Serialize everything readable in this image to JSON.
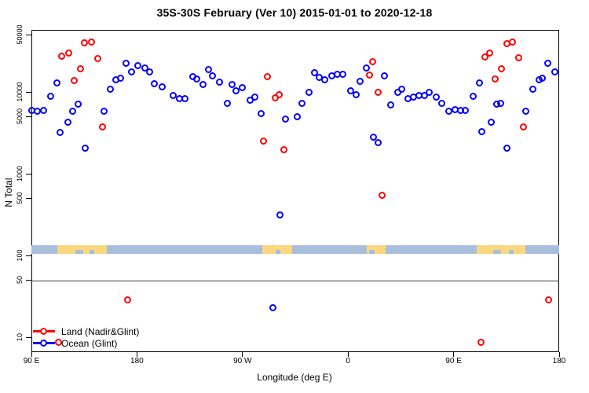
{
  "title": "35S-30S February (Ver 10)   2015-01-01 to 2020-12-18",
  "axis": {
    "x_label": "Longitude (deg E)",
    "y_label": "N Total",
    "x_ticks": [
      {
        "pos": 90,
        "label": "90 E"
      },
      {
        "pos": 180,
        "label": "180"
      },
      {
        "pos": 270,
        "label": "90 W"
      },
      {
        "pos": 360,
        "label": "0"
      },
      {
        "pos": 450,
        "label": "90 E"
      },
      {
        "pos": 540,
        "label": "180"
      }
    ],
    "y_ticks": [
      {
        "value": 50000,
        "label": "50000"
      },
      {
        "value": 10000,
        "label": "10000"
      },
      {
        "value": 5000,
        "label": "5000"
      },
      {
        "value": 1000,
        "label": "1000"
      },
      {
        "value": 500,
        "label": "500"
      },
      {
        "value": 100,
        "label": "100"
      },
      {
        "value": 50,
        "label": "50"
      },
      {
        "value": 10,
        "label": "10"
      }
    ],
    "y_scale": "log",
    "reference_line_value": 50
  },
  "legend": {
    "items": [
      {
        "label": "Land (Nadir&Glint)",
        "color": "#ff0000"
      },
      {
        "label": "Ocean (Glint)",
        "color": "#0000ff"
      }
    ]
  },
  "map_band": {
    "ocean_color": "#a9bedd",
    "land_color": "#fbd87f",
    "land_patches_deg": [
      [
        112,
        154
      ],
      [
        287,
        312
      ],
      [
        376,
        392
      ],
      [
        470,
        511
      ]
    ],
    "ocean_notches_deg": [
      [
        127.5,
        134
      ],
      [
        139.5,
        143.5
      ],
      [
        298,
        302.5
      ],
      [
        378,
        382.5
      ],
      [
        484,
        490.5
      ],
      [
        497,
        501
      ]
    ]
  },
  "chart_data": {
    "type": "scatter",
    "title": "35S-30S February (Ver 10)   2015-01-01 to 2020-12-18",
    "xlabel": "Longitude (deg E)",
    "ylabel": "N Total",
    "x_axis_note": "axis runs 90E eastward to 180 (wrap), values given as degrees 90-540",
    "xlim": [
      90,
      540
    ],
    "ylim_log": [
      8,
      60000
    ],
    "series": [
      {
        "name": "Land (Nadir&Glint)",
        "color": "#ff0000",
        "points": [
          [
            116.1,
            27100
          ],
          [
            122.1,
            29600
          ],
          [
            135.5,
            39400
          ],
          [
            141.6,
            40400
          ],
          [
            146.9,
            25400
          ],
          [
            132.2,
            19000
          ],
          [
            126.8,
            13600
          ],
          [
            150.9,
            3690
          ],
          [
            172.4,
            28
          ],
          [
            291.6,
            15200
          ],
          [
            298.3,
            8380
          ],
          [
            301.6,
            9160
          ],
          [
            288.2,
            2480
          ],
          [
            305.6,
            1940
          ],
          [
            381.3,
            23200
          ],
          [
            378.6,
            15900
          ],
          [
            386.0,
            9780
          ],
          [
            389.3,
            538
          ],
          [
            113.4,
            8.6
          ],
          [
            473.7,
            8.6
          ],
          [
            477.0,
            26500
          ],
          [
            481.1,
            29600
          ],
          [
            495.8,
            38600
          ],
          [
            500.5,
            40400
          ],
          [
            505.8,
            25900
          ],
          [
            491.1,
            19000
          ],
          [
            485.8,
            14300
          ],
          [
            509.9,
            3690
          ],
          [
            531.3,
            28
          ]
        ]
      },
      {
        "name": "Ocean (Glint)",
        "color": "#0000ff",
        "points": [
          [
            90.7,
            5880
          ],
          [
            95.4,
            5750
          ],
          [
            100.7,
            5880
          ],
          [
            106.7,
            8750
          ],
          [
            112.1,
            12800
          ],
          [
            130.2,
            7020
          ],
          [
            125.5,
            5750
          ],
          [
            121.5,
            4220
          ],
          [
            114.8,
            3160
          ],
          [
            136.2,
            2030
          ],
          [
            157.6,
            10700
          ],
          [
            152.3,
            5750
          ],
          [
            162.3,
            13900
          ],
          [
            166.3,
            14600
          ],
          [
            171.0,
            22200
          ],
          [
            175.7,
            17400
          ],
          [
            181.1,
            20700
          ],
          [
            187.1,
            19400
          ],
          [
            191.1,
            17400
          ],
          [
            195.1,
            12500
          ],
          [
            201.8,
            11400
          ],
          [
            211.2,
            8950
          ],
          [
            216.6,
            8190
          ],
          [
            221.2,
            8190
          ],
          [
            227.9,
            15200
          ],
          [
            231.3,
            14300
          ],
          [
            236.6,
            12200
          ],
          [
            241.3,
            18600
          ],
          [
            244.7,
            15600
          ],
          [
            250.7,
            13000
          ],
          [
            257.4,
            7180
          ],
          [
            261.4,
            12200
          ],
          [
            264.8,
            10200
          ],
          [
            270.1,
            11200
          ],
          [
            276.8,
            7840
          ],
          [
            280.8,
            8570
          ],
          [
            286.2,
            5380
          ],
          [
            296.3,
            22.7
          ],
          [
            302.3,
            310
          ],
          [
            307.0,
            4600
          ],
          [
            317.0,
            4920
          ],
          [
            321.0,
            7180
          ],
          [
            327.1,
            9780
          ],
          [
            331.8,
            17000
          ],
          [
            335.8,
            14900
          ],
          [
            340.5,
            13900
          ],
          [
            346.5,
            15600
          ],
          [
            351.2,
            16300
          ],
          [
            355.9,
            16300
          ],
          [
            362.6,
            10200
          ],
          [
            367.3,
            9160
          ],
          [
            370.6,
            13300
          ],
          [
            376.0,
            19400
          ],
          [
            382.0,
            2770
          ],
          [
            386.0,
            2370
          ],
          [
            391.4,
            15600
          ],
          [
            396.7,
            6840
          ],
          [
            402.7,
            9780
          ],
          [
            406.1,
            10700
          ],
          [
            411.4,
            8190
          ],
          [
            416.1,
            8570
          ],
          [
            420.8,
            8950
          ],
          [
            425.5,
            8950
          ],
          [
            429.5,
            9780
          ],
          [
            435.5,
            8570
          ],
          [
            440.2,
            7180
          ],
          [
            446.2,
            5750
          ],
          [
            451.6,
            6020
          ],
          [
            456.3,
            5880
          ],
          [
            460.3,
            5880
          ],
          [
            467.0,
            8750
          ],
          [
            472.4,
            12800
          ],
          [
            474.4,
            3230
          ],
          [
            482.4,
            4220
          ],
          [
            487.1,
            6940
          ],
          [
            490.4,
            7180
          ],
          [
            495.8,
            2030
          ],
          [
            511.8,
            5750
          ],
          [
            517.6,
            10700
          ],
          [
            523.2,
            13900
          ],
          [
            525.9,
            14600
          ],
          [
            530.6,
            22200
          ],
          [
            536.6,
            17400
          ]
        ]
      }
    ]
  }
}
